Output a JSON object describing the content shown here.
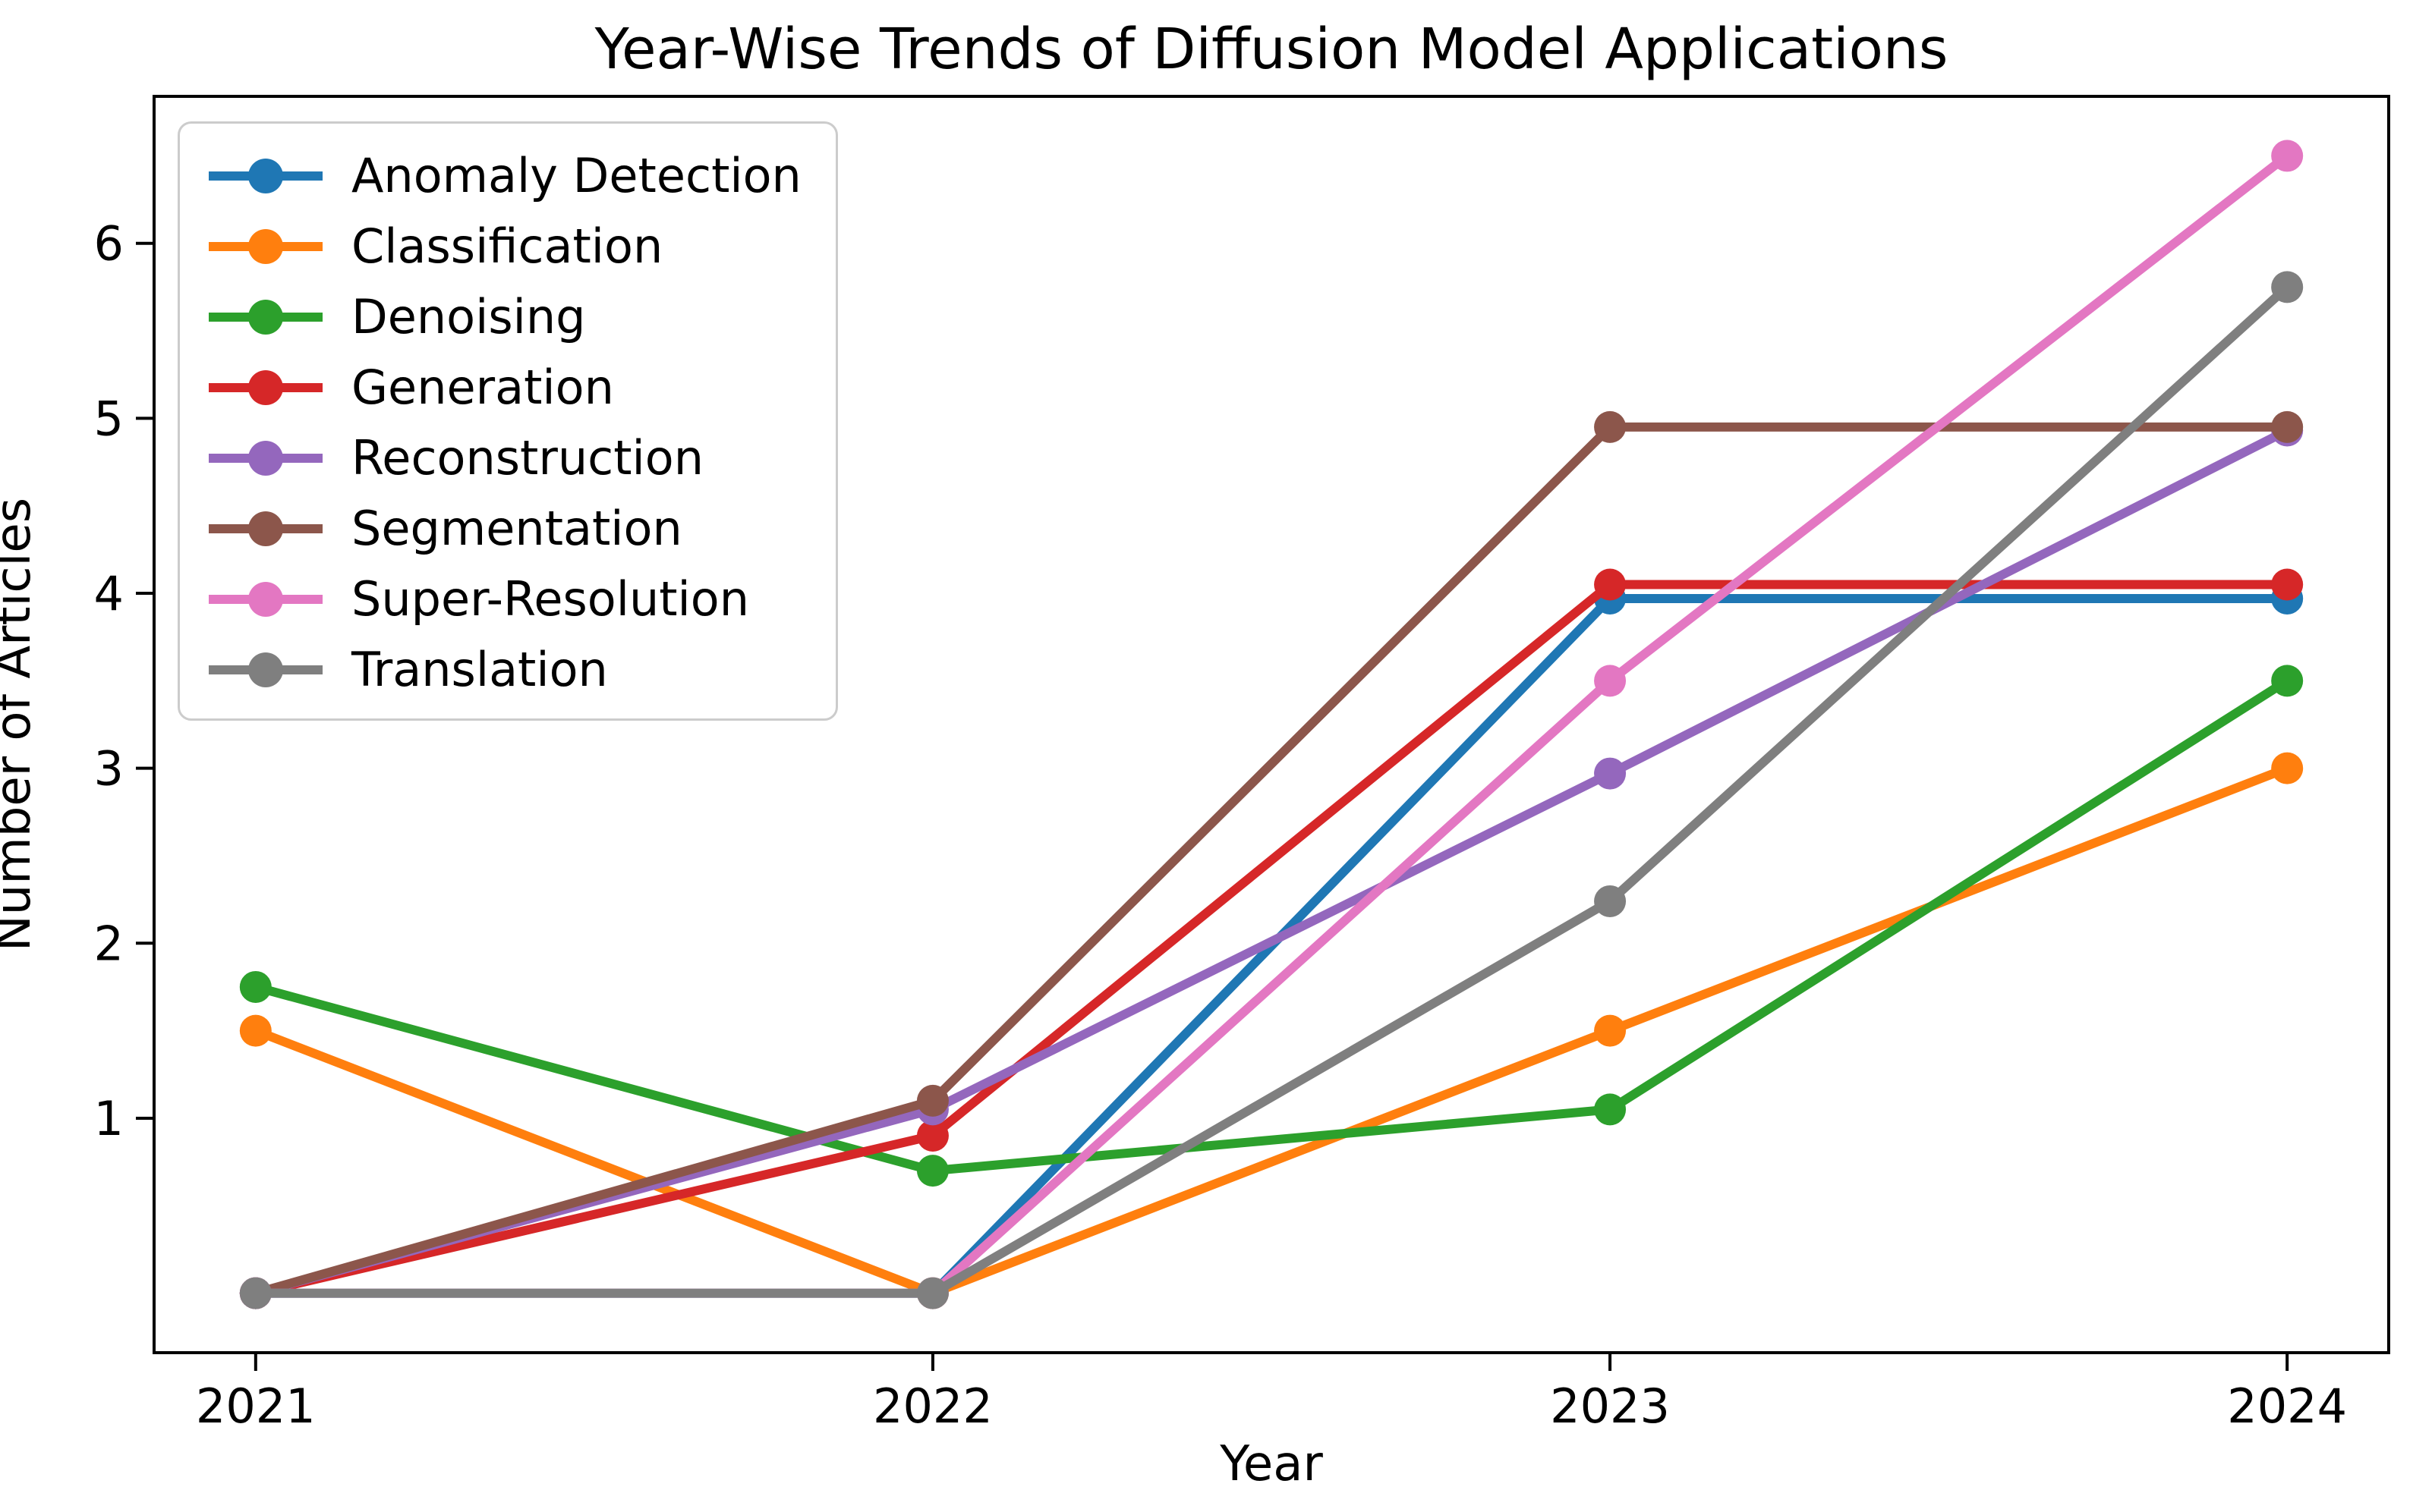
{
  "figure": {
    "title": "Year-Wise Trends of Diffusion Model Applications",
    "xlabel": "Year",
    "ylabel": "Number of Articles",
    "background_color": "#ffffff",
    "spine_color": "#000000",
    "legend_border_color": "#cccccc"
  },
  "chart_data": {
    "type": "line",
    "title": "Year-Wise Trends of Diffusion Model Applications",
    "xlabel": "Year",
    "ylabel": "Number of Articles",
    "x": [
      2021,
      2022,
      2023,
      2024
    ],
    "x_tick_labels": [
      "2021",
      "2022",
      "2023",
      "2024"
    ],
    "y_ticks": [
      1,
      2,
      3,
      4,
      5,
      6
    ],
    "y_tick_labels": [
      "1",
      "2",
      "3",
      "4",
      "5",
      "6"
    ],
    "xlim": [
      2020.85,
      2024.15
    ],
    "ylim": [
      -0.34,
      6.84
    ],
    "grid": false,
    "legend_position": "upper left",
    "marker": "circle",
    "series": [
      {
        "name": "Anomaly Detection",
        "color": "#1f77b4",
        "values": [
          0.0,
          0.0,
          3.97,
          3.97
        ]
      },
      {
        "name": "Classification",
        "color": "#ff7f0e",
        "values": [
          1.5,
          0.0,
          1.5,
          3.0
        ]
      },
      {
        "name": "Denoising",
        "color": "#2ca02c",
        "values": [
          1.75,
          0.7,
          1.05,
          3.5
        ]
      },
      {
        "name": "Generation",
        "color": "#d62728",
        "values": [
          0.0,
          0.9,
          4.05,
          4.05
        ]
      },
      {
        "name": "Reconstruction",
        "color": "#9467bd",
        "values": [
          0.0,
          1.05,
          2.97,
          4.93
        ]
      },
      {
        "name": "Segmentation",
        "color": "#8c564b",
        "values": [
          0.0,
          1.1,
          4.95,
          4.95
        ]
      },
      {
        "name": "Super-Resolution",
        "color": "#e377c2",
        "values": [
          0.0,
          0.0,
          3.5,
          6.5
        ]
      },
      {
        "name": "Translation",
        "color": "#7f7f7f",
        "values": [
          0.0,
          0.0,
          2.24,
          5.75
        ]
      }
    ]
  }
}
